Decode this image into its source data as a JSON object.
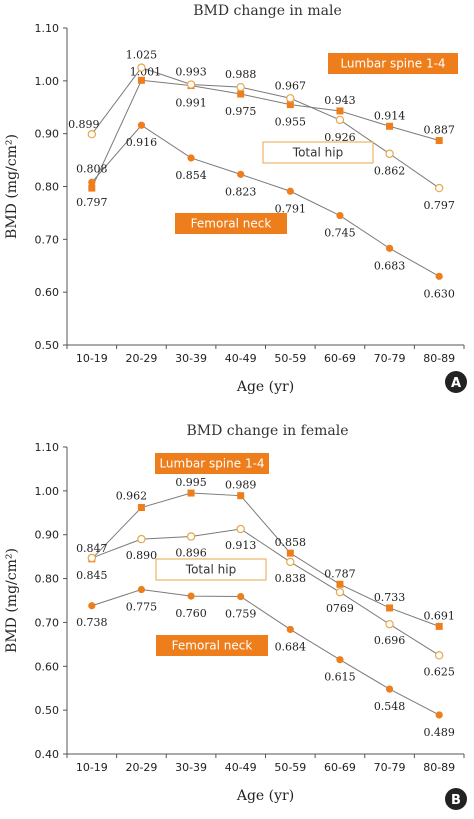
{
  "colors": {
    "orange": "#ee7d1c",
    "hip_outline": "#e8a64a",
    "line": "#7a7a7a",
    "axis": "#555555",
    "badge": "#222222"
  },
  "chart_data": [
    {
      "type": "line",
      "title": "BMD change in male",
      "xlabel": "Age (yr)",
      "ylabel": "BMD (mg/cm²)",
      "panel_label": "A",
      "categories": [
        "10-19",
        "20-29",
        "30-39",
        "40-49",
        "50-59",
        "60-69",
        "70-79",
        "80-89"
      ],
      "ylim": [
        0.5,
        1.1
      ],
      "yticks": [
        "0.50",
        "0.60",
        "0.70",
        "0.80",
        "0.90",
        "1.00",
        "1.10"
      ],
      "grid": false,
      "series": [
        {
          "name": "Lumbar spine 1-4",
          "marker": "square",
          "values": [
            0.797,
            1.001,
            0.991,
            0.975,
            0.955,
            0.943,
            0.914,
            0.887
          ],
          "labels": [
            "0.797",
            "1.001",
            "0.991",
            "0.975",
            "0.955",
            "0.943",
            "0.914",
            "0.887"
          ]
        },
        {
          "name": "Total hip",
          "marker": "open-circle",
          "values": [
            0.899,
            1.025,
            0.993,
            0.988,
            0.967,
            0.926,
            0.862,
            0.797
          ],
          "labels": [
            "0.899",
            "1.025",
            "0.993",
            "0.988",
            "0.967",
            "0.926",
            "0.862",
            "0.797"
          ]
        },
        {
          "name": "Femoral neck",
          "marker": "circle",
          "values": [
            0.808,
            0.916,
            0.854,
            0.823,
            0.791,
            0.745,
            0.683,
            0.63
          ],
          "labels": [
            "0.808",
            "0.916",
            "0.854",
            "0.823",
            "0.791",
            "0.745",
            "0.683",
            "0.630"
          ]
        }
      ]
    },
    {
      "type": "line",
      "title": "BMD change in female",
      "xlabel": "Age (yr)",
      "ylabel": "BMD (mg/cm²)",
      "panel_label": "B",
      "categories": [
        "10-19",
        "20-29",
        "30-39",
        "40-49",
        "50-59",
        "60-69",
        "70-79",
        "80-89"
      ],
      "ylim": [
        0.4,
        1.1
      ],
      "yticks": [
        "0.40",
        "0.50",
        "0.60",
        "0.70",
        "0.80",
        "0.90",
        "1.00",
        "1.10"
      ],
      "grid": false,
      "series": [
        {
          "name": "Lumbar spine 1-4",
          "marker": "square",
          "values": [
            0.845,
            0.962,
            0.995,
            0.989,
            0.858,
            0.787,
            0.733,
            0.691
          ],
          "labels": [
            "0.845",
            "0.962",
            "0.995",
            "0.989",
            "0.858",
            "0.787",
            "0.733",
            "0.691"
          ]
        },
        {
          "name": "Total hip",
          "marker": "open-circle",
          "values": [
            0.847,
            0.89,
            0.896,
            0.913,
            0.838,
            0.769,
            0.696,
            0.625
          ],
          "labels": [
            "0.847",
            "0.890",
            "0.896",
            "0.913",
            "0.838",
            "0769",
            "0.696",
            "0.625"
          ]
        },
        {
          "name": "Femoral neck",
          "marker": "circle",
          "values": [
            0.738,
            0.775,
            0.76,
            0.759,
            0.684,
            0.615,
            0.548,
            0.489
          ],
          "labels": [
            "0.738",
            "0.775",
            "0.760",
            "0.759",
            "0.684",
            "0.615",
            "0.548",
            "0.489"
          ]
        }
      ]
    }
  ]
}
